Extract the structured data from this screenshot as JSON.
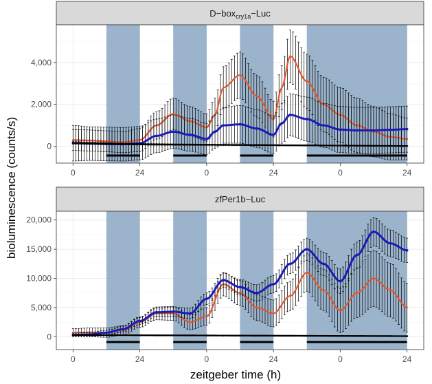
{
  "chart_data": {
    "type": "line",
    "xlabel": "zeitgeber time (h)",
    "ylabel": "bioluminescence (counts/s)",
    "x_tick_labels": [
      "0",
      "24",
      "0",
      "24",
      "0",
      "24"
    ],
    "x_ticks_hours": [
      0,
      24,
      48,
      72,
      96,
      120
    ],
    "xlim": [
      -6,
      126
    ],
    "dark_periods": [
      [
        12,
        24
      ],
      [
        36,
        48
      ],
      [
        60,
        72
      ],
      [
        84,
        120
      ]
    ],
    "line_colors": {
      "red": "#e0572e",
      "blue": "#1a1ab8",
      "black": "#000000"
    },
    "band_color": "#8aa7c3",
    "panels": [
      {
        "title_main": "D−box",
        "title_sub": "cry1a",
        "title_tail": "−Luc",
        "ylim": [
          -800,
          5800
        ],
        "y_ticks": [
          0,
          2000,
          4000
        ],
        "y_tick_labels": [
          "0",
          "2,000",
          "4,000"
        ],
        "series": [
          {
            "color": "red",
            "x": [
              0,
              6,
              12,
              18,
              24,
              30,
              36,
              42,
              48,
              51,
              54,
              60,
              66,
              72,
              75,
              78,
              84,
              90,
              96,
              102,
              108,
              114,
              120
            ],
            "y": [
              300,
              280,
              240,
              200,
              300,
              1000,
              1550,
              1200,
              900,
              1500,
              2800,
              3400,
              2400,
              1300,
              2800,
              4300,
              3100,
              2000,
              1500,
              1000,
              700,
              450,
              350
            ],
            "err": [
              500,
              500,
              500,
              500,
              550,
              650,
              750,
              700,
              650,
              800,
              1000,
              1100,
              1000,
              850,
              1050,
              1250,
              1300,
              1300,
              1300,
              1300,
              1200,
              1100,
              1000
            ]
          },
          {
            "color": "blue",
            "x": [
              0,
              6,
              12,
              18,
              24,
              30,
              36,
              42,
              48,
              51,
              54,
              60,
              66,
              72,
              75,
              78,
              84,
              90,
              96,
              102,
              108,
              114,
              120
            ],
            "y": [
              150,
              130,
              110,
              100,
              150,
              500,
              700,
              550,
              350,
              700,
              1000,
              1050,
              850,
              550,
              1100,
              1500,
              1300,
              1000,
              800,
              760,
              760,
              790,
              820
            ],
            "err": [
              850,
              800,
              800,
              800,
              800,
              800,
              800,
              780,
              750,
              800,
              850,
              900,
              900,
              900,
              950,
              1000,
              1050,
              1050,
              1100,
              1100,
              1100,
              1100,
              1100
            ]
          },
          {
            "color": "black",
            "x": [
              0,
              6,
              12,
              18,
              24,
              30,
              36,
              42,
              48,
              54,
              60,
              66,
              72,
              78,
              84,
              90,
              96,
              102,
              108,
              114,
              120
            ],
            "y": [
              170,
              150,
              130,
              110,
              100,
              90,
              85,
              80,
              75,
              70,
              65,
              60,
              55,
              50,
              45,
              40,
              35,
              30,
              25,
              20,
              15
            ],
            "err": [
              60,
              55,
              50,
              45,
              40,
              40,
              35,
              35,
              30,
              30,
              30,
              30,
              25,
              25,
              25,
              20,
              20,
              20,
              20,
              20,
              20
            ]
          }
        ]
      },
      {
        "title_main": "zfPer1b−Luc",
        "title_sub": "",
        "title_tail": "",
        "ylim": [
          -2200,
          21500
        ],
        "y_ticks": [
          0,
          5000,
          10000,
          15000,
          20000
        ],
        "y_tick_labels": [
          "0",
          "5,000",
          "10,000",
          "15,000",
          "20,000"
        ],
        "series": [
          {
            "color": "red",
            "x": [
              0,
              6,
              12,
              18,
              24,
              30,
              36,
              42,
              48,
              54,
              60,
              66,
              72,
              78,
              84,
              90,
              96,
              102,
              108,
              114,
              120
            ],
            "y": [
              700,
              750,
              700,
              1100,
              2500,
              4000,
              4000,
              2500,
              3500,
              9000,
              7500,
              5000,
              4000,
              7000,
              11000,
              8000,
              4500,
              7500,
              10000,
              8000,
              5000
            ],
            "err": [
              700,
              750,
              800,
              800,
              900,
              1100,
              1200,
              1300,
              1500,
              2000,
              2100,
              2200,
              2300,
              2500,
              3200,
              3500,
              3800,
              4200,
              4800,
              4600,
              4200
            ]
          },
          {
            "color": "blue",
            "x": [
              0,
              6,
              12,
              18,
              24,
              30,
              36,
              42,
              48,
              54,
              60,
              66,
              72,
              78,
              84,
              90,
              96,
              102,
              108,
              114,
              120
            ],
            "y": [
              300,
              400,
              700,
              1300,
              2700,
              4200,
              4300,
              4000,
              6500,
              9700,
              8500,
              7500,
              9000,
              12500,
              15000,
              12500,
              9500,
              14000,
              18000,
              16000,
              14800
            ],
            "err": [
              300,
              350,
              400,
              500,
              600,
              700,
              800,
              900,
              1000,
              1200,
              1300,
              1400,
              1500,
              1700,
              1900,
              2000,
              2100,
              2200,
              2400,
              2300,
              2100
            ]
          },
          {
            "color": "black",
            "x": [
              0,
              6,
              12,
              18,
              24,
              30,
              36,
              42,
              48,
              54,
              60,
              66,
              72,
              78,
              84,
              90,
              96,
              102,
              108,
              114,
              120
            ],
            "y": [
              300,
              290,
              280,
              270,
              260,
              250,
              240,
              230,
              220,
              210,
              200,
              190,
              180,
              170,
              160,
              150,
              140,
              130,
              120,
              110,
              100
            ],
            "err": [
              80,
              80,
              80,
              80,
              80,
              80,
              80,
              80,
              80,
              80,
              80,
              80,
              80,
              80,
              80,
              80,
              80,
              80,
              80,
              80,
              80
            ]
          }
        ]
      }
    ]
  }
}
